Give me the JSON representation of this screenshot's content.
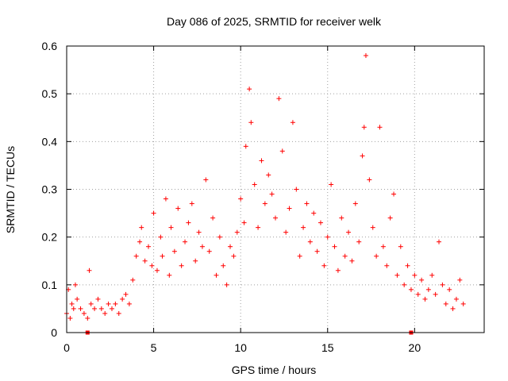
{
  "chart_data": {
    "type": "scatter",
    "title": "Day 086 of 2025, SRMTID for receiver welk",
    "xlabel": "GPS time / hours",
    "ylabel": "SRMTID / TECUs",
    "xlim": [
      0,
      24
    ],
    "ylim": [
      0,
      0.6
    ],
    "xticks": [
      0,
      5,
      10,
      15,
      20
    ],
    "yticks": [
      0,
      0.1,
      0.2,
      0.3,
      0.4,
      0.5,
      0.6
    ],
    "xtick_labels": [
      "0",
      "5",
      "10",
      "15",
      "20"
    ],
    "ytick_labels": [
      "0",
      "0.1",
      "0.2",
      "0.3",
      "0.4",
      "0.5",
      "0.6"
    ],
    "grid": true,
    "marker": "+",
    "color": "#ff0000",
    "zero_markers_x": [
      1.2,
      19.8
    ],
    "series": [
      {
        "name": "SRMTID",
        "x": [
          0.0,
          0.1,
          0.2,
          0.3,
          0.4,
          0.5,
          0.6,
          0.8,
          1.0,
          1.2,
          1.3,
          1.4,
          1.6,
          1.8,
          2.0,
          2.2,
          2.4,
          2.6,
          2.8,
          3.0,
          3.2,
          3.4,
          3.6,
          3.8,
          4.0,
          4.2,
          4.3,
          4.5,
          4.7,
          4.9,
          5.0,
          5.2,
          5.4,
          5.5,
          5.7,
          5.9,
          6.0,
          6.2,
          6.4,
          6.6,
          6.8,
          7.0,
          7.2,
          7.4,
          7.6,
          7.8,
          8.0,
          8.2,
          8.4,
          8.6,
          8.8,
          9.0,
          9.2,
          9.4,
          9.6,
          9.8,
          10.0,
          10.2,
          10.3,
          10.5,
          10.6,
          10.8,
          11.0,
          11.2,
          11.4,
          11.6,
          11.8,
          12.0,
          12.2,
          12.4,
          12.6,
          12.8,
          13.0,
          13.2,
          13.4,
          13.6,
          13.8,
          14.0,
          14.2,
          14.4,
          14.6,
          14.8,
          15.0,
          15.2,
          15.4,
          15.6,
          15.8,
          16.0,
          16.2,
          16.4,
          16.6,
          16.8,
          17.0,
          17.1,
          17.2,
          17.4,
          17.6,
          17.8,
          18.0,
          18.2,
          18.4,
          18.6,
          18.8,
          19.0,
          19.2,
          19.4,
          19.6,
          19.8,
          20.0,
          20.2,
          20.4,
          20.6,
          20.8,
          21.0,
          21.2,
          21.4,
          21.6,
          21.8,
          22.0,
          22.2,
          22.4,
          22.6,
          22.8
        ],
        "y": [
          0.04,
          0.09,
          0.03,
          0.06,
          0.05,
          0.1,
          0.07,
          0.05,
          0.04,
          0.03,
          0.13,
          0.06,
          0.05,
          0.07,
          0.05,
          0.04,
          0.06,
          0.05,
          0.06,
          0.04,
          0.07,
          0.08,
          0.06,
          0.11,
          0.16,
          0.19,
          0.22,
          0.15,
          0.18,
          0.14,
          0.25,
          0.13,
          0.2,
          0.16,
          0.28,
          0.12,
          0.22,
          0.17,
          0.26,
          0.14,
          0.19,
          0.23,
          0.27,
          0.15,
          0.21,
          0.18,
          0.32,
          0.17,
          0.24,
          0.12,
          0.2,
          0.14,
          0.1,
          0.18,
          0.16,
          0.21,
          0.28,
          0.23,
          0.39,
          0.51,
          0.44,
          0.31,
          0.22,
          0.36,
          0.27,
          0.33,
          0.29,
          0.24,
          0.49,
          0.38,
          0.21,
          0.26,
          0.44,
          0.3,
          0.16,
          0.22,
          0.27,
          0.19,
          0.25,
          0.17,
          0.23,
          0.14,
          0.2,
          0.31,
          0.18,
          0.13,
          0.24,
          0.16,
          0.21,
          0.15,
          0.27,
          0.19,
          0.37,
          0.43,
          0.58,
          0.32,
          0.22,
          0.16,
          0.43,
          0.18,
          0.14,
          0.24,
          0.29,
          0.12,
          0.18,
          0.1,
          0.14,
          0.09,
          0.12,
          0.08,
          0.11,
          0.07,
          0.09,
          0.12,
          0.08,
          0.19,
          0.1,
          0.06,
          0.09,
          0.05,
          0.07,
          0.11,
          0.06
        ]
      }
    ]
  }
}
